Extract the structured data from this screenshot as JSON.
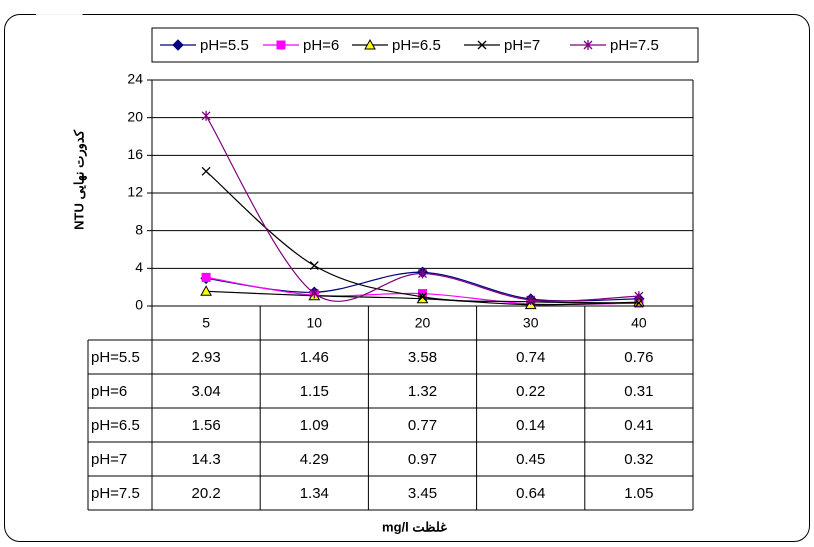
{
  "chart_data": {
    "type": "line",
    "categories": [
      "5",
      "10",
      "20",
      "30",
      "40"
    ],
    "series": [
      {
        "name": "pH=5.5",
        "values": [
          2.93,
          1.46,
          3.58,
          0.74,
          0.76
        ],
        "color": "#000080",
        "marker": "diamond"
      },
      {
        "name": "pH=6",
        "values": [
          3.04,
          1.15,
          1.32,
          0.22,
          0.31
        ],
        "color": "#ff00ff",
        "marker": "square"
      },
      {
        "name": "pH=6.5",
        "values": [
          1.56,
          1.09,
          0.77,
          0.14,
          0.41
        ],
        "color": "#000000",
        "marker": "triangle"
      },
      {
        "name": "pH=7",
        "values": [
          14.3,
          4.29,
          0.97,
          0.45,
          0.32
        ],
        "color": "#000000",
        "marker": "x"
      },
      {
        "name": "pH=7.5",
        "values": [
          20.2,
          1.34,
          3.45,
          0.64,
          1.05
        ],
        "color": "#800080",
        "marker": "asterisk"
      }
    ],
    "ylim": [
      0,
      24
    ],
    "yticks": [
      "0",
      "4",
      "8",
      "12",
      "16",
      "20",
      "24"
    ],
    "ylabel": "کدورت نهایی  NTU",
    "xlabel": "غلظت mg/l",
    "grid": true,
    "legend_position": "top",
    "data_table": true
  }
}
